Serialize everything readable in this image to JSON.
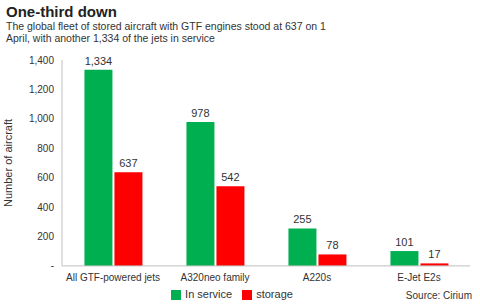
{
  "chart_data": {
    "type": "bar",
    "title": "One-third down",
    "subtitle": "The global fleet of stored aircraft with GTF engines stood at 637 on 1 April, with another 1,334 of the jets in service",
    "y_label": "Number of aircraft",
    "source": "Source: Cirium",
    "categories": [
      "All GTF-powered jets",
      "A320neo family",
      "A220s",
      "E-Jet E2s"
    ],
    "series": [
      {
        "name": "In service",
        "color": "#00b050",
        "values": [
          1334,
          978,
          255,
          101
        ],
        "value_labels": [
          "1,334",
          "978",
          "255",
          "101"
        ]
      },
      {
        "name": "storage",
        "color": "#ff0000",
        "values": [
          637,
          542,
          78,
          17
        ],
        "value_labels": [
          "637",
          "542",
          "78",
          "17"
        ]
      }
    ],
    "ylim": [
      0,
      1400
    ],
    "yticks": [
      {
        "value": 0,
        "label": "-"
      },
      200,
      400,
      600,
      800,
      {
        "value": 1000,
        "label": "1,000"
      },
      {
        "value": 1200,
        "label": "1,200"
      },
      {
        "value": 1400,
        "label": "1,400"
      }
    ],
    "grid": false,
    "legend": "bottom",
    "data_labels": true
  }
}
